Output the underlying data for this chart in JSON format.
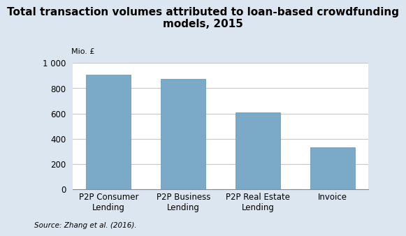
{
  "title": "Total transaction volumes attributed to loan-based crowdfunding\nmodels, 2015",
  "ylabel": "Mio. £",
  "categories": [
    "P2P Consumer\nLending",
    "P2P Business\nLending",
    "P2P Real Estate\nLending",
    "Invoice"
  ],
  "values": [
    905,
    875,
    610,
    330
  ],
  "bar_color": "#7baac8",
  "bar_edge_color": "#6090b0",
  "ylim": [
    0,
    1000
  ],
  "yticks": [
    0,
    200,
    400,
    600,
    800,
    1000
  ],
  "ytick_labels": [
    "0",
    "200",
    "400",
    "600",
    "800",
    "1 000"
  ],
  "background_color": "#dce6f0",
  "plot_background": "#ffffff",
  "source_text": "Source: Zhang et al. (2016).",
  "title_fontsize": 11,
  "tick_fontsize": 8.5,
  "source_fontsize": 7.5,
  "ylabel_fontsize": 8,
  "bar_width": 0.6,
  "grid_color": "#c8c8c8"
}
